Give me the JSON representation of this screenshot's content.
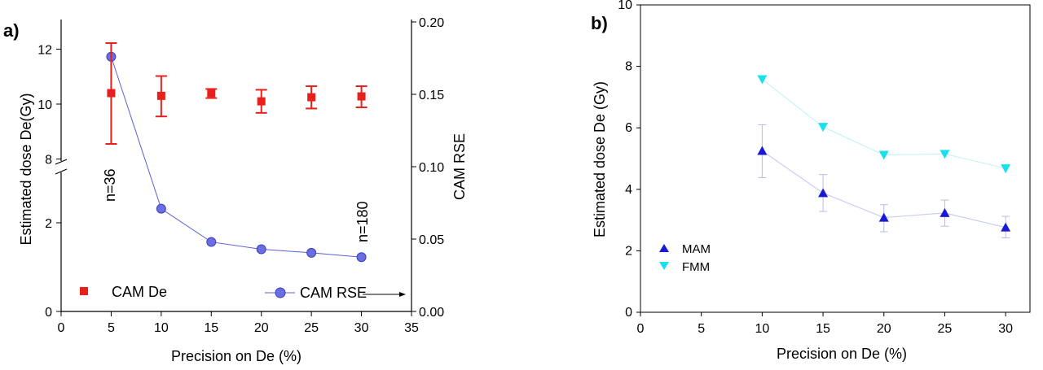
{
  "chart_data": [
    {
      "panel": "a)",
      "type": "scatter",
      "xlabel": "Precision on De (%)",
      "ylabel": "Estimated dose De(Gy)",
      "y2label": "CAM RSE",
      "xlim": [
        0,
        35
      ],
      "x_ticks": [
        "0",
        "5",
        "10",
        "15",
        "20",
        "25",
        "30",
        "35"
      ],
      "y_ticks_lower": [
        "0",
        "2"
      ],
      "y_ticks_upper": [
        "8",
        "10",
        "12"
      ],
      "y_axis_break": true,
      "y2lim": [
        0.0,
        0.2
      ],
      "y2_ticks": [
        "0.00",
        "0.05",
        "0.10",
        "0.15",
        "0.20"
      ],
      "series": [
        {
          "name": "CAM De",
          "axis": "left",
          "color": "#e8201c",
          "marker": "square",
          "x": [
            5,
            10,
            15,
            20,
            25,
            30
          ],
          "y": [
            10.4,
            10.3,
            10.4,
            10.1,
            10.25,
            10.28
          ],
          "yerr_low": [
            8.55,
            9.55,
            10.22,
            9.68,
            9.84,
            9.88
          ],
          "yerr_high": [
            12.22,
            11.02,
            10.55,
            10.52,
            10.65,
            10.65
          ]
        },
        {
          "name": "CAM RSE",
          "axis": "right",
          "color": "#5a5fd6",
          "marker": "circle",
          "line": true,
          "x": [
            5,
            10,
            15,
            20,
            25,
            30
          ],
          "y": [
            0.176,
            0.071,
            0.048,
            0.043,
            0.0405,
            0.0375
          ]
        }
      ],
      "annotations": [
        {
          "text": "n=36"
        },
        {
          "text": "n=180"
        }
      ],
      "legend": "bottom"
    },
    {
      "panel": "b)",
      "type": "line",
      "xlabel": "Precision on De (%)",
      "ylabel": "Estimated dose De (Gy)",
      "xlim": [
        0,
        32
      ],
      "ylim": [
        0,
        10
      ],
      "x_ticks": [
        "0",
        "5",
        "10",
        "15",
        "20",
        "25",
        "30"
      ],
      "y_ticks": [
        "0",
        "2",
        "4",
        "6",
        "8",
        "10"
      ],
      "series": [
        {
          "name": "MAM",
          "color": "#1a1ad6",
          "line_color": "#c9cdf2",
          "marker": "triangle-up",
          "x": [
            10,
            15,
            20,
            25,
            30
          ],
          "y": [
            5.25,
            3.88,
            3.08,
            3.23,
            2.76
          ],
          "yerr_low": [
            4.38,
            3.28,
            2.62,
            2.8,
            2.42
          ],
          "yerr_high": [
            6.1,
            4.48,
            3.5,
            3.65,
            3.12
          ]
        },
        {
          "name": "FMM",
          "color": "#1ae0ee",
          "line_color": "#c6f4f6",
          "marker": "triangle-down",
          "x": [
            10,
            15,
            20,
            25,
            30
          ],
          "y": [
            7.58,
            6.03,
            5.12,
            5.15,
            4.68
          ]
        }
      ],
      "legend": "lower-left"
    }
  ]
}
